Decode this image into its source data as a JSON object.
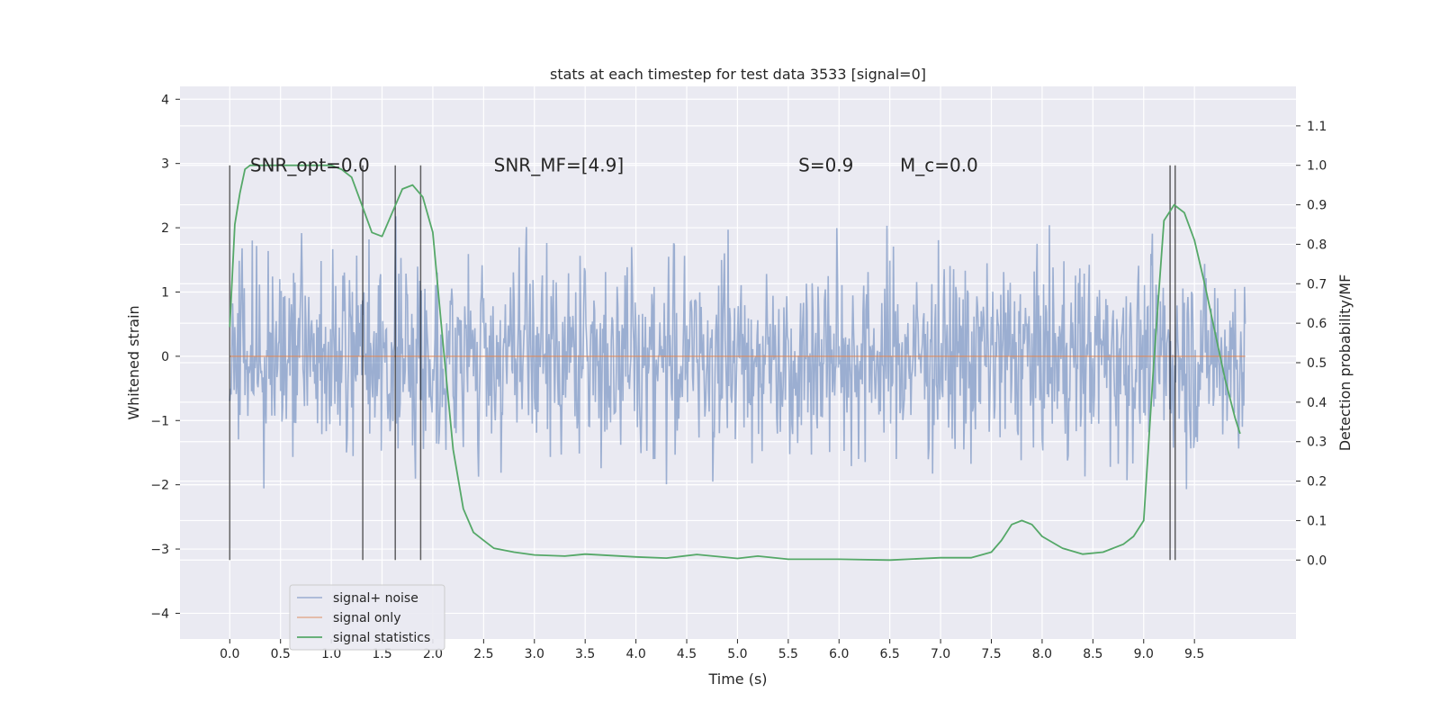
{
  "chart_data": {
    "type": "line",
    "title": "stats at each timestep for test data 3533 [signal=0]",
    "xlabel": "Time (s)",
    "ylabel": "Whitened strain",
    "y2label": "Detection probability/MF",
    "xlim": [
      -0.49,
      10.5
    ],
    "ylim": [
      -4.4,
      4.2
    ],
    "y2lim": [
      -0.2,
      1.2
    ],
    "x_ticks": [
      "0.0",
      "0.5",
      "1.0",
      "1.5",
      "2.0",
      "2.5",
      "3.0",
      "3.5",
      "4.0",
      "4.5",
      "5.0",
      "5.5",
      "6.0",
      "6.5",
      "7.0",
      "7.5",
      "8.0",
      "8.5",
      "9.0",
      "9.5"
    ],
    "y_ticks": [
      "4",
      "3",
      "2",
      "1",
      "0",
      "−1",
      "−2",
      "−3",
      "−4"
    ],
    "y2_ticks": [
      "1.1",
      "1.0",
      "0.9",
      "0.8",
      "0.7",
      "0.6",
      "0.5",
      "0.4",
      "0.3",
      "0.2",
      "0.1",
      "0.0"
    ],
    "grid": true,
    "legend_position": "lower-left",
    "colors": {
      "noise": "#4c72b0",
      "signal_only": "#dd8452",
      "statistics": "#55a868",
      "vlines": "#000000",
      "background": "#eaeaf2"
    },
    "annotations": [
      {
        "text": "SNR_opt=0.0",
        "x": 0.2,
        "y2": 1.0
      },
      {
        "text": "SNR_MF=[4.9]",
        "x": 2.6,
        "y2": 1.0
      },
      {
        "text": "S=0.9",
        "x": 5.6,
        "y2": 1.0
      },
      {
        "text": "M_c=0.0",
        "x": 6.6,
        "y2": 1.0
      }
    ],
    "vlines_x": [
      0.0,
      1.31,
      1.63,
      1.88,
      9.26,
      9.31
    ],
    "noise_envelope": {
      "x_start": 0.0,
      "x_end": 10.0,
      "core_amplitude": 1.4,
      "peak_amplitude": 3.8
    },
    "series": [
      {
        "name": "signal+ noise",
        "kind": "noise",
        "axis": "left"
      },
      {
        "name": "signal only",
        "kind": "flat",
        "axis": "left",
        "value": 0.0,
        "x_range": [
          0.0,
          10.0
        ]
      },
      {
        "name": "signal statistics",
        "kind": "line",
        "axis": "right",
        "x": [
          0.0,
          0.05,
          0.1,
          0.15,
          0.2,
          0.3,
          0.5,
          0.8,
          1.0,
          1.1,
          1.2,
          1.3,
          1.4,
          1.5,
          1.6,
          1.7,
          1.8,
          1.9,
          2.0,
          2.1,
          2.2,
          2.3,
          2.4,
          2.5,
          2.6,
          2.8,
          3.0,
          3.3,
          3.5,
          4.0,
          4.3,
          4.6,
          5.0,
          5.2,
          5.5,
          6.0,
          6.5,
          7.0,
          7.3,
          7.5,
          7.6,
          7.7,
          7.8,
          7.9,
          8.0,
          8.2,
          8.4,
          8.6,
          8.8,
          8.9,
          9.0,
          9.1,
          9.2,
          9.3,
          9.4,
          9.5,
          9.6,
          9.7,
          9.8,
          9.9,
          9.95
        ],
        "y": [
          0.59,
          0.85,
          0.93,
          0.99,
          1.0,
          1.0,
          1.0,
          1.0,
          1.0,
          0.99,
          0.97,
          0.9,
          0.83,
          0.82,
          0.88,
          0.94,
          0.95,
          0.92,
          0.83,
          0.55,
          0.28,
          0.13,
          0.07,
          0.05,
          0.03,
          0.02,
          0.013,
          0.01,
          0.015,
          0.008,
          0.005,
          0.014,
          0.004,
          0.01,
          0.002,
          0.002,
          0.0,
          0.006,
          0.006,
          0.02,
          0.05,
          0.09,
          0.1,
          0.09,
          0.06,
          0.03,
          0.015,
          0.02,
          0.04,
          0.06,
          0.1,
          0.5,
          0.86,
          0.9,
          0.88,
          0.81,
          0.7,
          0.58,
          0.46,
          0.36,
          0.32
        ]
      }
    ]
  }
}
